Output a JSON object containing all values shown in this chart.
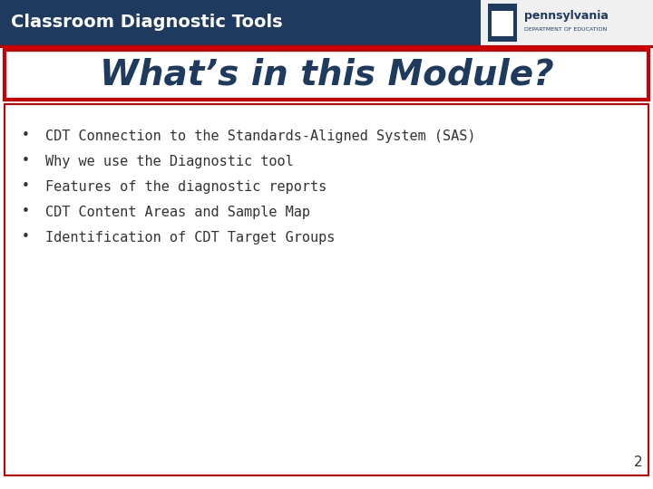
{
  "title_bar_color": "#1e3a5f",
  "title_bar_text": "Classroom Diagnostic Tools",
  "title_bar_text_color": "#ffffff",
  "title_bar_font_size": 14,
  "slide_bg_color": "#ffffff",
  "heading_text": "What’s in this Module?",
  "heading_text_color": "#1e3a5f",
  "heading_font_size": 28,
  "heading_box_border_color": "#cc0000",
  "heading_box_bg_color": "#ffffff",
  "content_box_border_color": "#cc0000",
  "content_box_bg_color": "#ffffff",
  "bullet_items": [
    "CDT Connection to the Standards-Aligned System (SAS)",
    "Why we use the Diagnostic tool",
    "Features of the diagnostic reports",
    "CDT Content Areas and Sample Map",
    "Identification of CDT Target Groups"
  ],
  "bullet_text_color": "#333333",
  "bullet_font_size": 11,
  "page_number": "2",
  "page_number_color": "#333333",
  "page_number_font_size": 11,
  "logo_box_color": "#f0f0f0",
  "pa_shield_color": "#1e3a5f",
  "pa_text_color": "#1e3a5f"
}
